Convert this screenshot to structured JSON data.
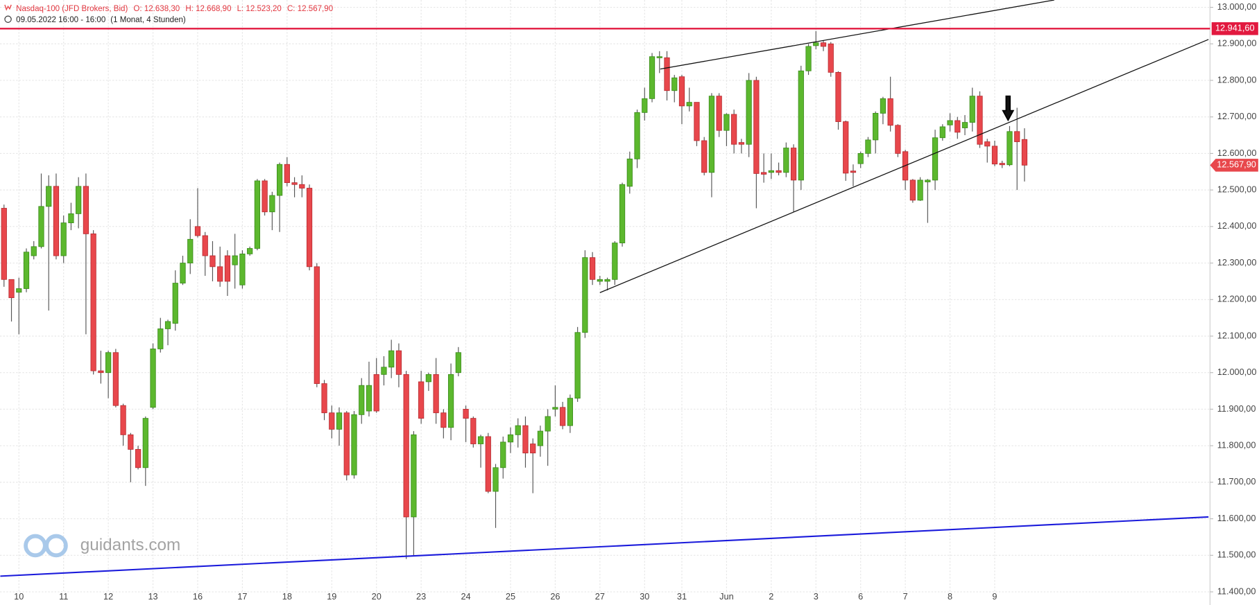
{
  "chart_data": {
    "type": "candlestick",
    "title": "Nasdaq-100 (JFD Brokers, Bid)",
    "ohlc": [
      "O: 12.638,30",
      "H: 12.668,90",
      "L: 12.523,20",
      "C: 12.567,90"
    ],
    "subtitle": "09.05.2022 16:00 - 16:00",
    "period": "(1 Monat, 4 Stunden)",
    "watermark": "guidants.com",
    "up_color": "#5cb82e",
    "down_color": "#e8474c",
    "grid": true,
    "categories": [
      null,
      null,
      "10",
      null,
      null,
      null,
      null,
      null,
      "11",
      null,
      null,
      null,
      null,
      null,
      "12",
      null,
      null,
      null,
      null,
      null,
      "13",
      null,
      null,
      null,
      null,
      null,
      "16",
      null,
      null,
      null,
      null,
      null,
      "17",
      null,
      null,
      null,
      null,
      null,
      "18",
      null,
      null,
      null,
      null,
      null,
      "19",
      null,
      null,
      null,
      null,
      null,
      "20",
      null,
      null,
      null,
      null,
      null,
      "23",
      null,
      null,
      null,
      null,
      null,
      "24",
      null,
      null,
      null,
      null,
      null,
      "25",
      null,
      null,
      null,
      null,
      null,
      "26",
      null,
      null,
      null,
      null,
      null,
      "27",
      null,
      null,
      null,
      null,
      null,
      "30",
      null,
      null,
      null,
      null,
      "31",
      null,
      null,
      null,
      null,
      null,
      "Jun",
      null,
      null,
      null,
      null,
      null,
      "2",
      null,
      null,
      null,
      null,
      null,
      "3",
      null,
      null,
      null,
      null,
      null,
      "6",
      null,
      null,
      null,
      null,
      null,
      "7",
      null,
      null,
      null,
      null,
      null,
      "8",
      null,
      null,
      null,
      null,
      null,
      "9",
      null,
      null,
      null,
      null
    ],
    "open": [
      12450,
      12255,
      12220,
      12230,
      12320,
      12345,
      12455,
      12510,
      12320,
      12410,
      12435,
      12510,
      12380,
      12005,
      12000,
      12055,
      11910,
      11830,
      11790,
      11740,
      11905,
      12065,
      12120,
      12135,
      12245,
      12300,
      12400,
      12375,
      12320,
      12290,
      12320,
      12295,
      12240,
      12325,
      12340,
      12525,
      12440,
      12485,
      12570,
      12520,
      12515,
      12505,
      12290,
      11970,
      11890,
      11845,
      11890,
      11720,
      11885,
      11895,
      11995,
      11995,
      12015,
      12060,
      11995,
      11605,
      11975,
      11975,
      11995,
      11890,
      11850,
      12000,
      11900,
      11875,
      11805,
      11825,
      11675,
      11740,
      11810,
      11830,
      11855,
      11805,
      11800,
      11840,
      11900,
      11905,
      11855,
      11930,
      12110,
      12315,
      12250,
      12250,
      12255,
      12355,
      12510,
      12585,
      12712,
      12750,
      12862,
      12862,
      12772,
      12810,
      12730,
      12740,
      12635,
      12548,
      12757,
      12663,
      12707,
      12630,
      12625,
      12800,
      12548,
      12548,
      12553,
      12548,
      12615,
      12527,
      12826,
      12895,
      12903,
      12900,
      12822,
      12687,
      12552,
      12572,
      12600,
      12637,
      12710,
      12750,
      12677,
      12605,
      12527,
      12472,
      12522,
      12527,
      12643,
      12678,
      12690,
      12670,
      12685,
      12757,
      12632,
      12620,
      12573,
      12569,
      12660,
      12638.3
    ],
    "high": [
      12460,
      12255,
      12260,
      12340,
      12360,
      12545,
      12540,
      12545,
      12430,
      12465,
      12535,
      12545,
      12390,
      12060,
      12060,
      12065,
      11915,
      11835,
      11800,
      11880,
      12080,
      12150,
      12145,
      12280,
      12320,
      12420,
      12505,
      12385,
      12360,
      12345,
      12335,
      12380,
      12335,
      12345,
      12530,
      12530,
      12495,
      12575,
      12590,
      12535,
      12540,
      12515,
      12300,
      11980,
      11910,
      11905,
      11895,
      11895,
      11985,
      12030,
      12040,
      12045,
      12090,
      12080,
      12005,
      11840,
      12005,
      12000,
      12040,
      11900,
      12025,
      12070,
      11910,
      11880,
      11830,
      11835,
      11750,
      11825,
      11850,
      11875,
      11880,
      11820,
      11855,
      11900,
      11965,
      11920,
      11940,
      12125,
      12335,
      12330,
      12265,
      12260,
      12360,
      12520,
      12605,
      12720,
      12780,
      12875,
      12880,
      12880,
      12815,
      12815,
      12780,
      12740,
      12645,
      12765,
      12765,
      12710,
      12720,
      12640,
      12820,
      12810,
      12600,
      12600,
      12575,
      12630,
      12625,
      12840,
      12900,
      12935,
      12910,
      12905,
      12825,
      12690,
      12570,
      12605,
      12645,
      12715,
      12755,
      12810,
      12680,
      12610,
      12530,
      12535,
      12530,
      12665,
      12680,
      12710,
      12700,
      12705,
      12780,
      12770,
      12640,
      12635,
      12580,
      12675,
      12725,
      12668.9
    ],
    "low": [
      12235,
      12140,
      12105,
      12220,
      12310,
      12340,
      12170,
      12310,
      12300,
      12390,
      12395,
      12105,
      11995,
      11970,
      11930,
      11905,
      11800,
      11700,
      11735,
      11690,
      11900,
      12055,
      12075,
      12115,
      12240,
      12270,
      12370,
      12265,
      12250,
      12235,
      12210,
      12230,
      12230,
      12320,
      12335,
      12430,
      12390,
      12385,
      12510,
      12480,
      12480,
      12280,
      11960,
      11870,
      11820,
      11800,
      11705,
      11710,
      11860,
      11880,
      11890,
      11965,
      11985,
      11960,
      11490,
      11500,
      11860,
      11950,
      11860,
      11820,
      11815,
      11990,
      11810,
      11795,
      11740,
      11670,
      11575,
      11710,
      11780,
      11795,
      11740,
      11670,
      11770,
      11745,
      11880,
      11845,
      11835,
      11920,
      12095,
      12240,
      12240,
      12225,
      12240,
      12345,
      12490,
      12560,
      12690,
      12740,
      12820,
      12745,
      12740,
      12680,
      12715,
      12620,
      12540,
      12480,
      12645,
      12620,
      12600,
      12600,
      12590,
      12450,
      12520,
      12530,
      12540,
      12535,
      12440,
      12500,
      12815,
      12885,
      12880,
      12810,
      12665,
      12525,
      12510,
      12560,
      12590,
      12600,
      12680,
      12660,
      12590,
      12500,
      12465,
      12470,
      12410,
      12500,
      12635,
      12660,
      12640,
      12650,
      12660,
      12615,
      12575,
      12565,
      12560,
      12565,
      12500,
      12523.2
    ],
    "close": [
      12255,
      12205,
      12230,
      12330,
      12345,
      12455,
      12510,
      12320,
      12410,
      12435,
      12510,
      12380,
      12005,
      12000,
      12055,
      11910,
      11830,
      11790,
      11740,
      11875,
      12065,
      12120,
      12140,
      12245,
      12300,
      12365,
      12375,
      12320,
      12290,
      12250,
      12250,
      12320,
      12325,
      12340,
      12525,
      12440,
      12485,
      12570,
      12520,
      12515,
      12505,
      12290,
      11970,
      11890,
      11845,
      11890,
      11720,
      11885,
      11965,
      11965,
      11895,
      12015,
      12060,
      11995,
      11605,
      11830,
      11875,
      11995,
      11890,
      11850,
      11995,
      12055,
      11875,
      11805,
      11825,
      11675,
      11740,
      11810,
      11830,
      11855,
      11780,
      11780,
      11840,
      11880,
      11905,
      11855,
      11930,
      12110,
      12315,
      12255,
      12255,
      12255,
      12355,
      12515,
      12585,
      12712,
      12750,
      12865,
      12865,
      12772,
      12807,
      12730,
      12740,
      12635,
      12548,
      12757,
      12663,
      12707,
      12625,
      12625,
      12800,
      12545,
      12543,
      12553,
      12548,
      12615,
      12527,
      12826,
      12893,
      12903,
      12893,
      12822,
      12687,
      12546,
      12548,
      12600,
      12637,
      12710,
      12750,
      12677,
      12600,
      12527,
      12472,
      12527,
      12527,
      12643,
      12673,
      12690,
      12658,
      12685,
      12757,
      12625,
      12620,
      12571,
      12569,
      12660,
      12632,
      12567.9
    ],
    "ylim": [
      11364,
      13020
    ],
    "yticks": [
      {
        "value": 11400,
        "label": "11.400,00"
      },
      {
        "value": 11500,
        "label": "11.500,00"
      },
      {
        "value": 11600,
        "label": "11.600,00"
      },
      {
        "value": 11700,
        "label": "11.700,00"
      },
      {
        "value": 11800,
        "label": "11.800,00"
      },
      {
        "value": 11900,
        "label": "11.900,00"
      },
      {
        "value": 12000,
        "label": "12.000,00"
      },
      {
        "value": 12100,
        "label": "12.100,00"
      },
      {
        "value": 12200,
        "label": "12.200,00"
      },
      {
        "value": 12300,
        "label": "12.300,00"
      },
      {
        "value": 12400,
        "label": "12.400,00"
      },
      {
        "value": 12500,
        "label": "12.500,00"
      },
      {
        "value": 12600,
        "label": "12.600,00"
      },
      {
        "value": 12700,
        "label": "12.700,00"
      },
      {
        "value": 12800,
        "label": "12.800,00"
      },
      {
        "value": 12900,
        "label": "12.900,00"
      },
      {
        "value": 13000,
        "label": "13.000,00"
      }
    ],
    "hline": {
      "value": 12941.6,
      "label": "12.941,60",
      "color": "#e2193f"
    },
    "last_price": {
      "value": 12567.9,
      "label": "12.567,90",
      "color": "#e8474c"
    },
    "trendlines": [
      {
        "color": "#111111",
        "x": [
          80,
          161.7
        ],
        "y": [
          12219,
          12912
        ]
      },
      {
        "color": "#111111",
        "x": [
          88.1,
          141
        ],
        "y": [
          12831,
          13020
        ]
      },
      {
        "color": "#1a1adb",
        "x": [
          -0.5,
          161.7
        ],
        "y": [
          11443,
          11605
        ]
      }
    ]
  }
}
